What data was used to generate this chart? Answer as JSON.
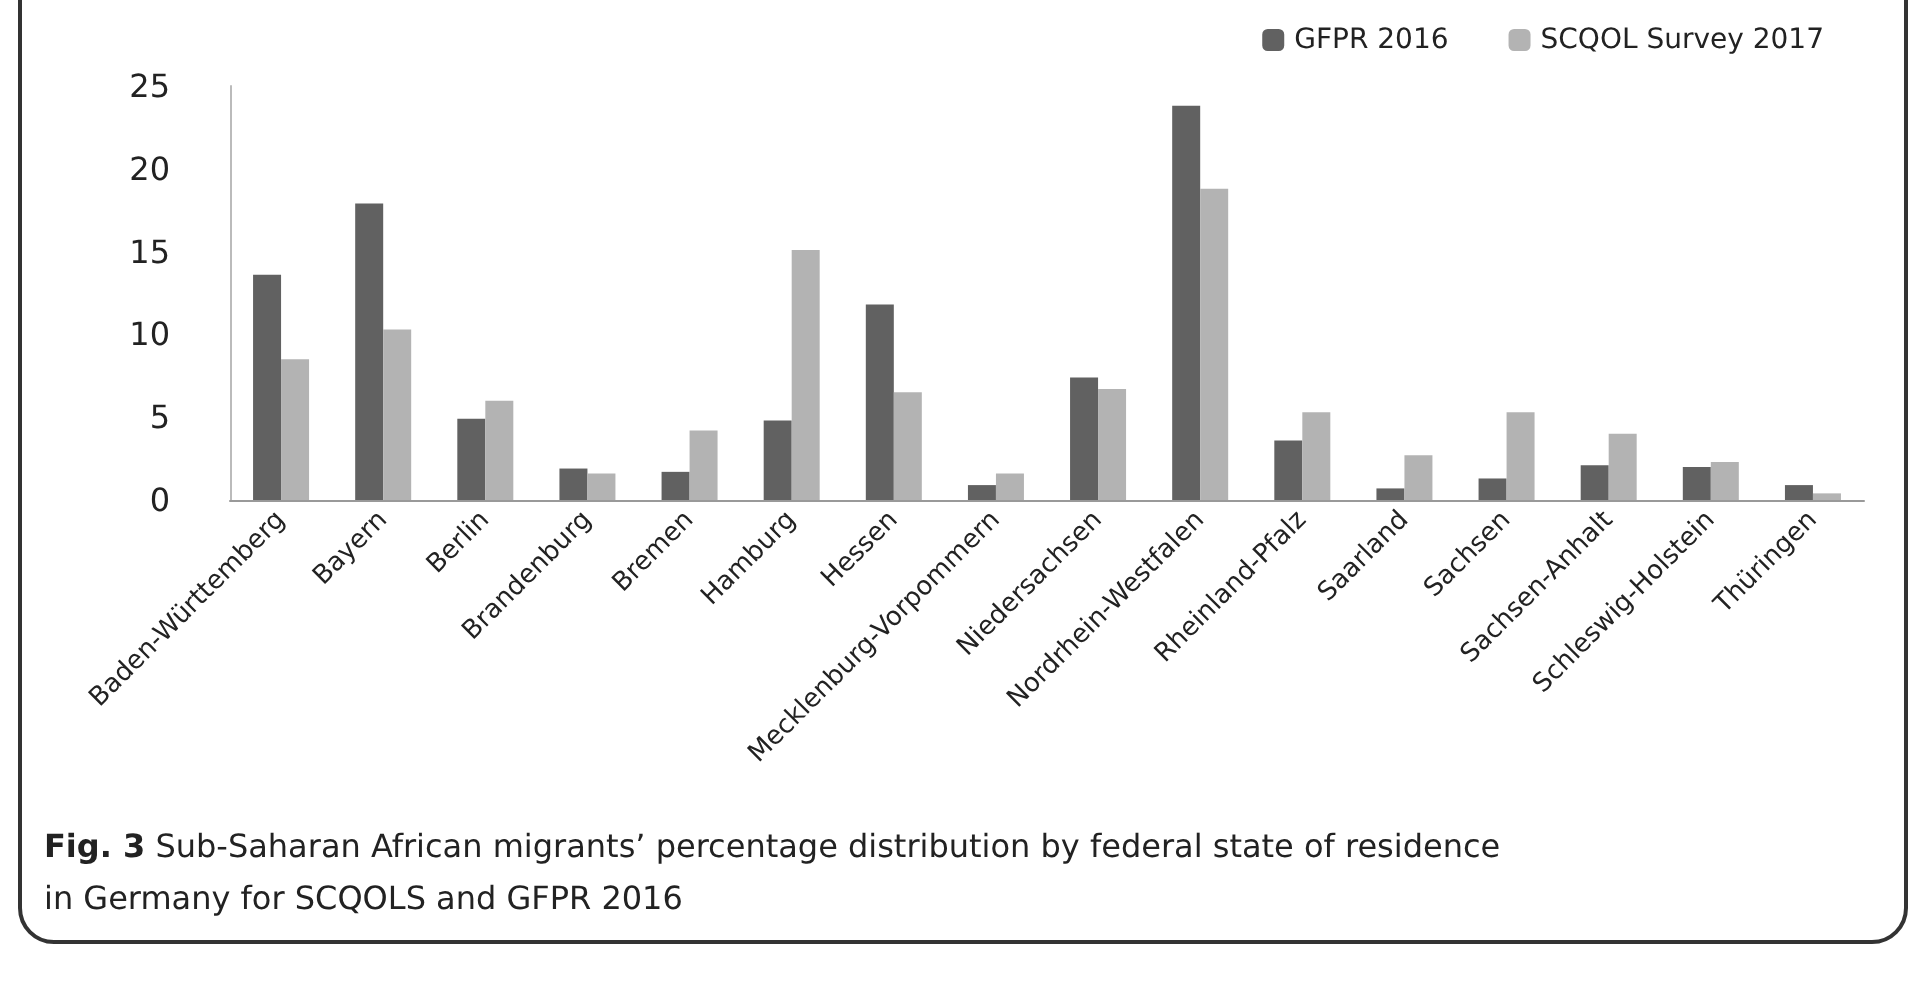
{
  "chart_data": {
    "type": "bar",
    "categories": [
      "Baden-Württemberg",
      "Bayern",
      "Berlin",
      "Brandenburg",
      "Bremen",
      "Hamburg",
      "Hessen",
      "Mecklenburg-Vorpommern",
      "Niedersachsen",
      "Nordrhein-Westfalen",
      "Rheinland-Pfalz",
      "Saarland",
      "Sachsen",
      "Sachsen-Anhalt",
      "Schleswig-Holstein",
      "Thüringen"
    ],
    "series": [
      {
        "name": "GFPR 2016",
        "color": "#616161",
        "values": [
          13.6,
          17.9,
          4.9,
          1.9,
          1.7,
          4.8,
          11.8,
          0.9,
          7.4,
          23.8,
          3.6,
          0.7,
          1.3,
          2.1,
          2.0,
          0.9
        ]
      },
      {
        "name": "SCQOL Survey 2017",
        "color": "#b3b3b3",
        "values": [
          8.5,
          10.3,
          6.0,
          1.6,
          4.2,
          15.1,
          6.5,
          1.6,
          6.7,
          18.8,
          5.3,
          2.7,
          5.3,
          4.0,
          2.3,
          0.4
        ]
      }
    ],
    "ylim": [
      0,
      25
    ],
    "yticks": [
      0,
      5,
      10,
      15,
      20,
      25
    ],
    "grid": false,
    "legend": "top right",
    "annotations": [
      "Fig. 3 Sub-Saharan African migrants’ percentage distribution by federal state of residence in Germany for SCQOLS and GFPR 2016"
    ]
  }
}
